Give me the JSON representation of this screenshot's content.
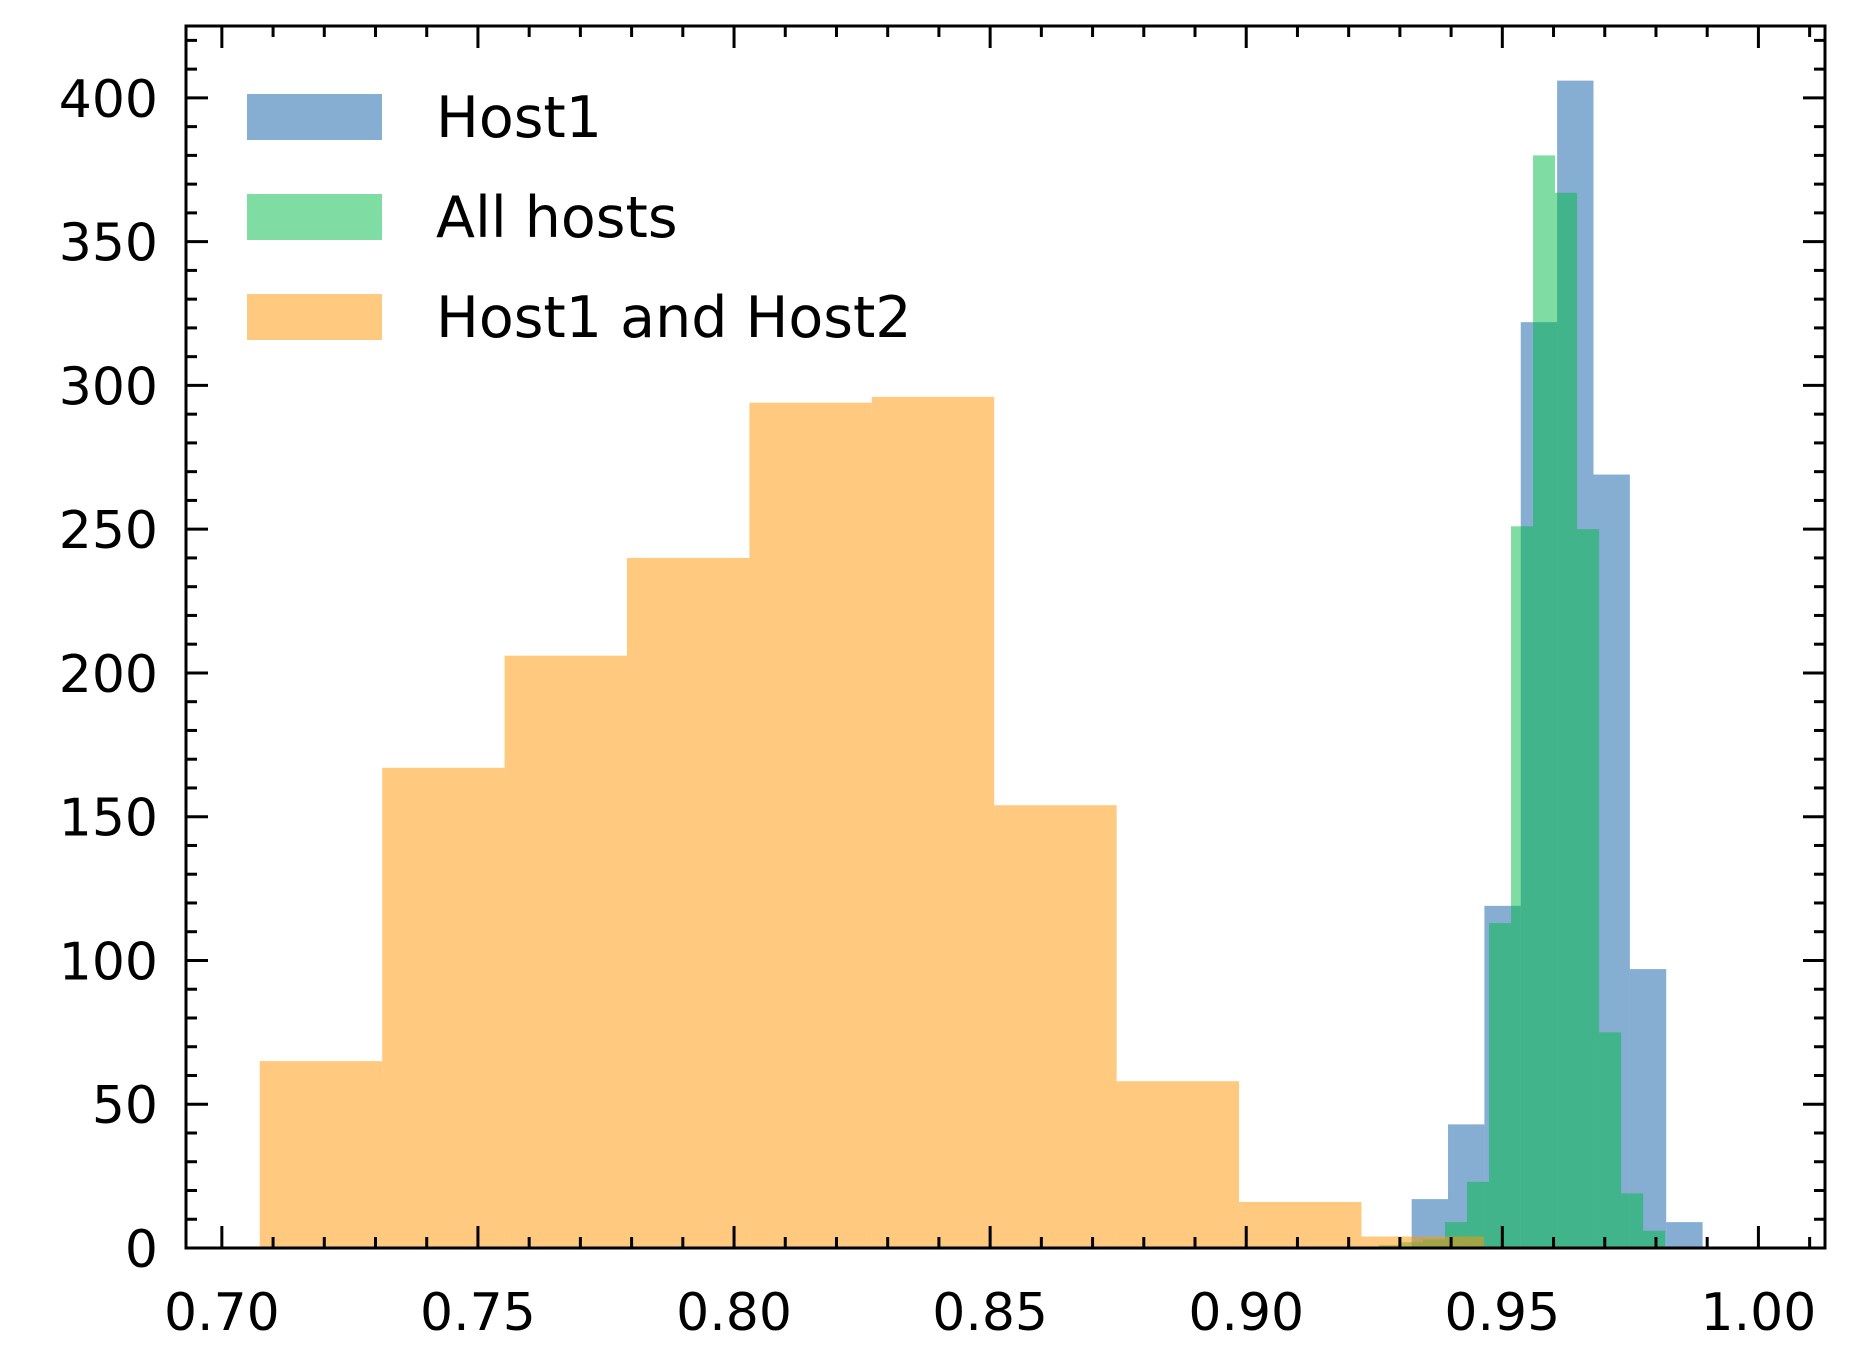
{
  "chart_data": {
    "type": "bar",
    "title": "",
    "xlabel": "",
    "ylabel": "",
    "xlim": [
      0.693,
      1.013
    ],
    "ylim": [
      0,
      425
    ],
    "xticks": [
      0.7,
      0.75,
      0.8,
      0.85,
      0.9,
      0.95,
      1.0
    ],
    "xtick_labels": [
      "0.70",
      "0.75",
      "0.80",
      "0.85",
      "0.90",
      "0.95",
      "1.00"
    ],
    "yticks": [
      0,
      50,
      100,
      150,
      200,
      250,
      300,
      350,
      400
    ],
    "ytick_labels": [
      "0",
      "50",
      "100",
      "150",
      "200",
      "250",
      "300",
      "350",
      "400"
    ],
    "grid": false,
    "legend_position": "top-left",
    "series": [
      {
        "name": "Host1",
        "color": "#0C5DA5",
        "opacity": 0.5,
        "bin_edges": [
          0.9323,
          0.9394,
          0.9465,
          0.9536,
          0.9607,
          0.9678,
          0.9749,
          0.982,
          0.9891,
          0.9962
        ],
        "values": [
          17,
          43,
          119,
          322,
          406,
          269,
          97,
          9,
          0
        ]
      },
      {
        "name": "All hosts",
        "color": "#00B945",
        "opacity": 0.5,
        "bin_edges": [
          0.9259,
          0.9302,
          0.9345,
          0.9388,
          0.9431,
          0.9474,
          0.9517,
          0.956,
          0.9603,
          0.9646,
          0.9689,
          0.9732,
          0.9775,
          0.9818
        ],
        "values": [
          1,
          2,
          3,
          9,
          23,
          113,
          251,
          380,
          367,
          250,
          75,
          19,
          6
        ]
      },
      {
        "name": "Host1 and Host2",
        "color": "#FF9500",
        "opacity": 0.5,
        "bin_edges": [
          0.7074,
          0.7313,
          0.7552,
          0.7791,
          0.803,
          0.8269,
          0.8508,
          0.8747,
          0.8986,
          0.9225,
          0.9464
        ],
        "values": [
          65,
          167,
          206,
          240,
          294,
          296,
          154,
          58,
          16,
          4
        ]
      }
    ]
  }
}
